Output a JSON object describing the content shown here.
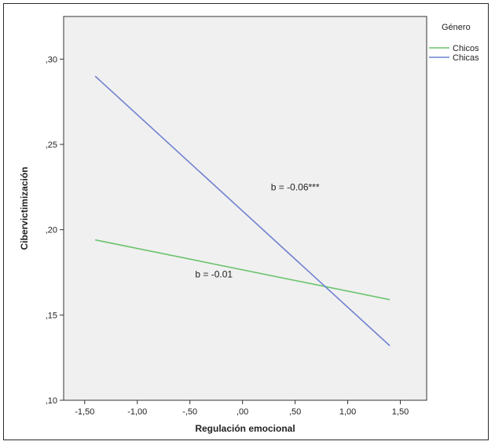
{
  "chart_data": {
    "type": "line",
    "title": "",
    "xlabel": "Regulación emocional",
    "ylabel": "Cibervictimización",
    "xlim": [
      -1.7,
      1.75
    ],
    "ylim": [
      0.1,
      0.325
    ],
    "xticks": [
      -1.5,
      -1.0,
      -0.5,
      0.0,
      0.5,
      1.0,
      1.5
    ],
    "xtick_labels": [
      "-1,50",
      "-1,00",
      "-,50",
      ",00",
      ",50",
      "1,00",
      "1,50"
    ],
    "yticks": [
      0.1,
      0.15,
      0.2,
      0.25,
      0.3
    ],
    "ytick_labels": [
      ",10",
      ",15",
      ",20",
      ",25",
      ",30"
    ],
    "grid": false,
    "background": "#f0f0f0",
    "legend": {
      "title": "Género",
      "position": "top-right outside"
    },
    "series": [
      {
        "name": "Chicos",
        "color": "#6cc36e",
        "x": [
          -1.4,
          1.4
        ],
        "y": [
          0.194,
          0.159
        ]
      },
      {
        "name": "Chicas",
        "color": "#6f82d0",
        "x": [
          -1.4,
          1.4
        ],
        "y": [
          0.29,
          0.132
        ]
      }
    ],
    "annotations": [
      {
        "text": "b = -0.06***",
        "x": 0.27,
        "y": 0.223
      },
      {
        "text": "b = -0.01",
        "x": -0.45,
        "y": 0.172
      }
    ]
  }
}
